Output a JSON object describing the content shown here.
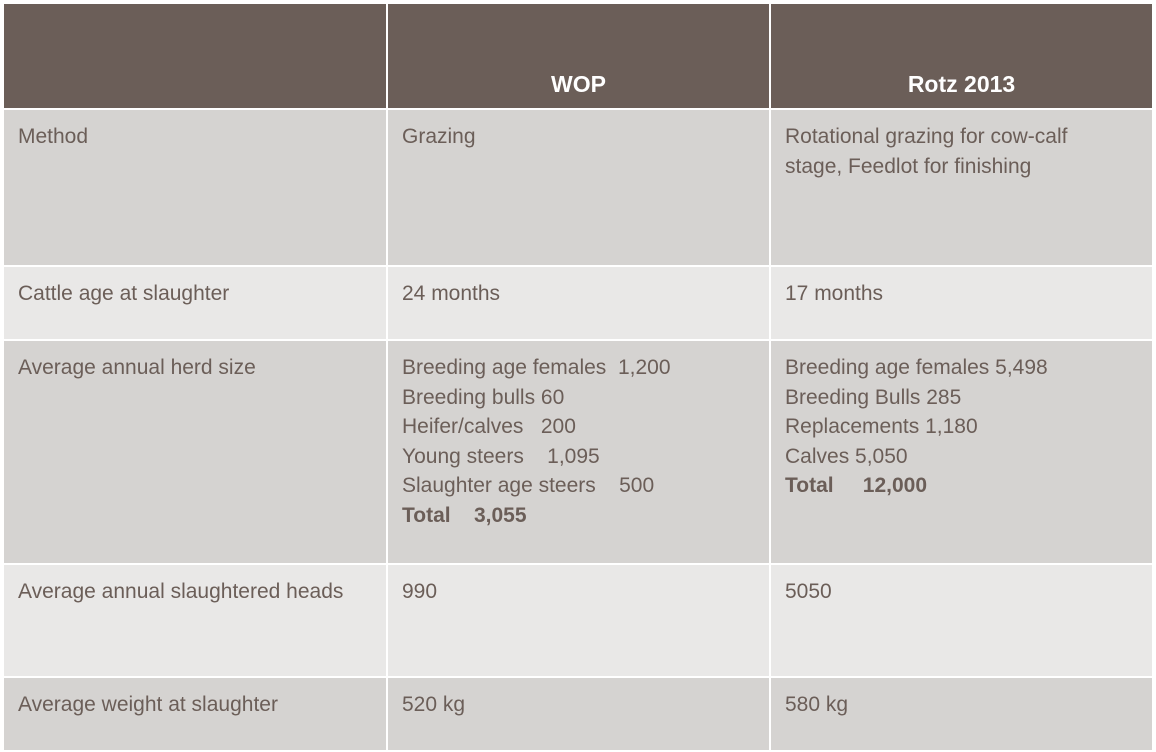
{
  "header": [
    "",
    "WOP",
    "Rotz 2013"
  ],
  "rows": [
    {
      "label": "Method",
      "wop": [
        "Grazing"
      ],
      "rotz": [
        "Rotational grazing for cow-calf",
        "stage, Feedlot for finishing"
      ]
    },
    {
      "label": "Cattle age at slaughter",
      "wop": [
        "24 months"
      ],
      "rotz": [
        "17 months"
      ]
    },
    {
      "label": "Average annual herd size",
      "wop": [
        "Breeding age females  1,200",
        "Breeding bulls 60",
        "Heifer/calves   200",
        "Young steers    1,095",
        "Slaughter age steers    500"
      ],
      "wop_total": "Total    3,055",
      "rotz": [
        "Breeding age females 5,498",
        "Breeding Bulls 285",
        "Replacements 1,180",
        "Calves 5,050"
      ],
      "rotz_total": "Total     12,000"
    },
    {
      "label": "Average annual slaughtered heads",
      "wop": [
        "990"
      ],
      "rotz": [
        "5050"
      ]
    },
    {
      "label": "Average weight at slaughter",
      "wop": [
        "520 kg"
      ],
      "rotz": [
        "580 kg"
      ]
    }
  ],
  "colors": {
    "header_bg": "#6b5e58",
    "row_dark": "#d5d3d1",
    "row_light": "#e9e8e7",
    "text": "#6b5e58"
  }
}
